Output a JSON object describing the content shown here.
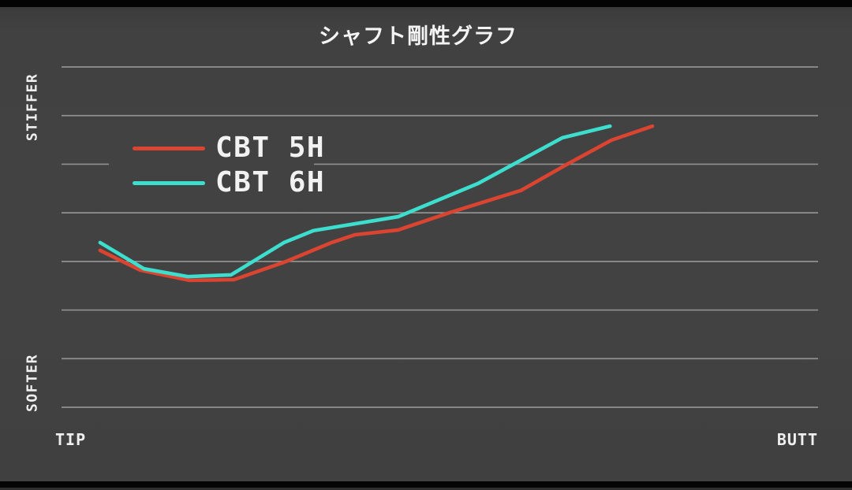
{
  "title": "シャフト剛性グラフ",
  "axes": {
    "y_top_label": "STIFFER",
    "y_bottom_label": "SOFTER",
    "x_left_label": "TIP",
    "x_right_label": "BUTT"
  },
  "colors": {
    "background": "#414141",
    "letterbox": "#040404",
    "gridline": "rgba(255,255,255,0.42)",
    "text": "#f2f2f2",
    "cbt_5h": "#DB4431",
    "cbt_6h": "#3EDECF"
  },
  "chart_data": {
    "type": "line",
    "title": "シャフト剛性グラフ",
    "xlabel_left": "TIP",
    "xlabel_right": "BUTT",
    "ylabel_top": "STIFFER",
    "ylabel_bottom": "SOFTER",
    "x_unit": "position along shaft, 0=tip end 100=butt end (no numeric ticks shown)",
    "y_unit": "relative stiffness, 0=softest gridline 100=stiffest gridline (no numeric ticks shown)",
    "grid": {
      "horizontal_lines": 8,
      "vertical_lines": 0
    },
    "legend_position": "upper-left-inside",
    "series": [
      {
        "name": "CBT 5H",
        "color": "#DB4431",
        "points": [
          [
            5.1,
            46.1
          ],
          [
            10.4,
            40.3
          ],
          [
            16.9,
            37.3
          ],
          [
            22.8,
            37.5
          ],
          [
            29.4,
            42.6
          ],
          [
            35.7,
            48.4
          ],
          [
            38.8,
            50.7
          ],
          [
            44.5,
            52.1
          ],
          [
            51.3,
            57.2
          ],
          [
            60.7,
            63.7
          ],
          [
            66.9,
            71.5
          ],
          [
            72.7,
            78.5
          ],
          [
            78.1,
            82.6
          ]
        ]
      },
      {
        "name": "CBT 6H",
        "color": "#3EDECF",
        "points": [
          [
            5.1,
            48.4
          ],
          [
            10.9,
            40.7
          ],
          [
            16.7,
            38.4
          ],
          [
            22.4,
            38.9
          ],
          [
            29.4,
            48.4
          ],
          [
            33.3,
            51.9
          ],
          [
            44.5,
            56.0
          ],
          [
            55.0,
            65.7
          ],
          [
            66.2,
            79.2
          ],
          [
            72.5,
            82.6
          ]
        ]
      }
    ]
  }
}
